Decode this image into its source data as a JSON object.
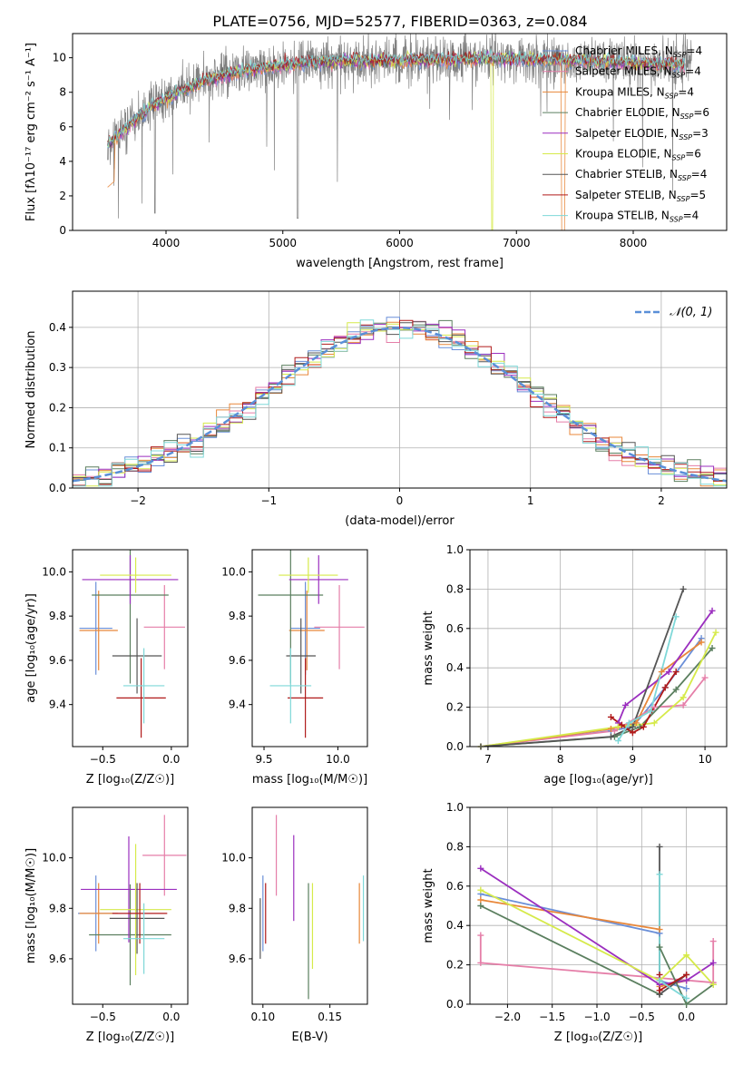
{
  "figure_title": "PLATE=0756, MJD=52577, FIBERID=0363, z=0.084",
  "colors": {
    "Chabrier MILES": "#6a8fd8",
    "Salpeter MILES": "#e57ea8",
    "Kroupa MILES": "#e8873a",
    "Chabrier ELODIE": "#5b7f5f",
    "Salpeter ELODIE": "#9b2fbf",
    "Kroupa ELODIE": "#d6ea4a",
    "Chabrier STELIB": "#555555",
    "Salpeter STELIB": "#b01a1a",
    "Kroupa STELIB": "#7ed8d8",
    "data": "#808080",
    "normal": "#5a8fd8"
  },
  "chart_data": [
    {
      "id": "spectrum",
      "type": "line",
      "xlabel": "wavelength [Angstrom, rest frame]",
      "ylabel": "Flux [fλ10⁻¹⁷ erg cm⁻² s⁻¹ A⁻¹]",
      "xlim": [
        3200,
        8800
      ],
      "ylim": [
        0,
        11.4
      ],
      "xticks": [
        4000,
        5000,
        6000,
        7000,
        8000
      ],
      "yticks": [
        0,
        2,
        4,
        6,
        8,
        10
      ],
      "legend_position": "right",
      "legend": [
        {
          "model": "Chabrier MILES",
          "nssp": 4
        },
        {
          "model": "Salpeter MILES",
          "nssp": 4
        },
        {
          "model": "Kroupa MILES",
          "nssp": 4
        },
        {
          "model": "Chabrier ELODIE",
          "nssp": 6
        },
        {
          "model": "Salpeter ELODIE",
          "nssp": 3
        },
        {
          "model": "Kroupa ELODIE",
          "nssp": 6
        },
        {
          "model": "Chabrier STELIB",
          "nssp": 4
        },
        {
          "model": "Salpeter STELIB",
          "nssp": 5
        },
        {
          "model": "Kroupa STELIB",
          "nssp": 4
        }
      ],
      "model_continuum": {
        "x": [
          3500,
          3700,
          3900,
          4100,
          4300,
          4500,
          4800,
          5200,
          5600,
          6000,
          6400,
          6800,
          7200,
          7600,
          8000,
          8400
        ],
        "y": [
          5.0,
          6.2,
          7.3,
          8.0,
          8.6,
          9.0,
          9.4,
          9.7,
          9.8,
          9.85,
          9.9,
          9.95,
          9.9,
          9.8,
          9.7,
          9.6
        ]
      },
      "data_range": [
        3500,
        8500
      ]
    },
    {
      "id": "residuals",
      "type": "histogram",
      "xlabel": "(data-model)/error",
      "ylabel": "Normed distribution",
      "xlim": [
        -2.5,
        2.5
      ],
      "ylim": [
        0,
        0.49
      ],
      "xticks": [
        -2,
        -1,
        0,
        1,
        2
      ],
      "yticks": [
        0.0,
        0.1,
        0.2,
        0.3,
        0.4
      ],
      "grid": true,
      "legend_position": "top-right",
      "legend": "𝒩(0, 1)",
      "bin_width": 0.1,
      "bin_start": -2.5,
      "approx_shape": "normal, mean 0, sigma 1, clipped at |x| = 2.5"
    },
    {
      "id": "age_vs_Z",
      "type": "scatter",
      "xlabel": "Z [log₁₀(Z/Z☉)]",
      "ylabel": "age  [log₁₀(age/yr)]",
      "xlim": [
        -0.72,
        0.12
      ],
      "ylim": [
        9.21,
        10.1
      ],
      "xticks": [
        -0.5,
        0.0
      ],
      "yticks": [
        9.4,
        9.6,
        9.8,
        10.0
      ],
      "points": [
        {
          "model": "Chabrier MILES",
          "x": -0.55,
          "xerr": 0.12,
          "y": 9.745,
          "yerr": 0.21
        },
        {
          "model": "Salpeter MILES",
          "x": -0.05,
          "xerr": 0.15,
          "y": 9.75,
          "yerr": 0.19
        },
        {
          "model": "Kroupa MILES",
          "x": -0.53,
          "xerr": 0.14,
          "y": 9.735,
          "yerr": 0.18
        },
        {
          "model": "Chabrier ELODIE",
          "x": -0.3,
          "xerr": 0.28,
          "y": 9.895,
          "yerr": 0.4
        },
        {
          "model": "Salpeter ELODIE",
          "x": -0.3,
          "xerr": 0.35,
          "y": 9.965,
          "yerr": 0.11
        },
        {
          "model": "Kroupa ELODIE",
          "x": -0.26,
          "xerr": 0.26,
          "y": 9.985,
          "yerr": 0.08
        },
        {
          "model": "Chabrier STELIB",
          "x": -0.25,
          "xerr": 0.18,
          "y": 9.62,
          "yerr": 0.17
        },
        {
          "model": "Salpeter STELIB",
          "x": -0.22,
          "xerr": 0.18,
          "y": 9.43,
          "yerr": 0.18
        },
        {
          "model": "Kroupa STELIB",
          "x": -0.2,
          "xerr": 0.15,
          "y": 9.485,
          "yerr": 0.17
        }
      ]
    },
    {
      "id": "age_vs_mass",
      "type": "scatter",
      "xlabel": "mass [log₁₀(M/M☉)]",
      "ylabel": "",
      "xlim": [
        9.42,
        10.2
      ],
      "ylim": [
        9.21,
        10.1
      ],
      "xticks": [
        9.5,
        10.0
      ],
      "yticks": [
        9.4,
        9.6,
        9.8,
        10.0
      ],
      "points": [
        {
          "model": "Chabrier MILES",
          "x": 9.78,
          "xerr": 0.1,
          "y": 9.745,
          "yerr": 0.21
        },
        {
          "model": "Salpeter MILES",
          "x": 10.01,
          "xerr": 0.17,
          "y": 9.75,
          "yerr": 0.19
        },
        {
          "model": "Kroupa MILES",
          "x": 9.79,
          "xerr": 0.12,
          "y": 9.735,
          "yerr": 0.18
        },
        {
          "model": "Chabrier ELODIE",
          "x": 9.68,
          "xerr": 0.22,
          "y": 9.895,
          "yerr": 0.4
        },
        {
          "model": "Salpeter ELODIE",
          "x": 9.87,
          "xerr": 0.2,
          "y": 9.965,
          "yerr": 0.11
        },
        {
          "model": "Kroupa ELODIE",
          "x": 9.8,
          "xerr": 0.2,
          "y": 9.985,
          "yerr": 0.08
        },
        {
          "model": "Chabrier STELIB",
          "x": 9.75,
          "xerr": 0.1,
          "y": 9.62,
          "yerr": 0.17
        },
        {
          "model": "Salpeter STELIB",
          "x": 9.78,
          "xerr": 0.12,
          "y": 9.43,
          "yerr": 0.18
        },
        {
          "model": "Kroupa STELIB",
          "x": 9.68,
          "xerr": 0.14,
          "y": 9.485,
          "yerr": 0.17
        }
      ]
    },
    {
      "id": "mw_vs_age",
      "type": "line",
      "xlabel": "age  [log₁₀(age/yr)]",
      "ylabel": "mass weight",
      "xlim": [
        6.75,
        10.3
      ],
      "ylim": [
        0,
        1.0
      ],
      "xticks": [
        7,
        8,
        9,
        10
      ],
      "yticks": [
        0.0,
        0.2,
        0.4,
        0.6,
        0.8,
        1.0
      ],
      "grid": true,
      "series": [
        {
          "model": "Chabrier MILES",
          "x": [
            6.9,
            8.7,
            9.0,
            9.45,
            9.95
          ],
          "y": [
            0.0,
            0.08,
            0.1,
            0.3,
            0.55
          ]
        },
        {
          "model": "Salpeter MILES",
          "x": [
            6.9,
            8.75,
            9.3,
            9.7,
            10.0
          ],
          "y": [
            0.0,
            0.08,
            0.2,
            0.21,
            0.35
          ]
        },
        {
          "model": "Kroupa MILES",
          "x": [
            6.9,
            8.7,
            9.05,
            9.4,
            9.95
          ],
          "y": [
            0.0,
            0.09,
            0.12,
            0.38,
            0.53
          ]
        },
        {
          "model": "Chabrier ELODIE",
          "x": [
            6.9,
            8.75,
            9.1,
            9.6,
            10.1
          ],
          "y": [
            0.0,
            0.05,
            0.1,
            0.29,
            0.5
          ]
        },
        {
          "model": "Salpeter ELODIE",
          "x": [
            8.8,
            8.9,
            9.5,
            10.1
          ],
          "y": [
            0.12,
            0.21,
            0.38,
            0.69
          ]
        },
        {
          "model": "Kroupa ELODIE",
          "x": [
            6.9,
            8.8,
            9.3,
            9.7,
            10.15
          ],
          "y": [
            0.0,
            0.1,
            0.12,
            0.25,
            0.58
          ]
        },
        {
          "model": "Chabrier STELIB",
          "x": [
            6.9,
            8.7,
            9.0,
            9.7
          ],
          "y": [
            0.0,
            0.05,
            0.1,
            0.8
          ]
        },
        {
          "model": "Salpeter STELIB",
          "x": [
            8.7,
            8.85,
            9.0,
            9.15,
            9.45,
            9.6
          ],
          "y": [
            0.15,
            0.11,
            0.07,
            0.1,
            0.3,
            0.38
          ]
        },
        {
          "model": "Kroupa STELIB",
          "x": [
            8.8,
            8.95,
            9.25,
            9.6
          ],
          "y": [
            0.03,
            0.12,
            0.18,
            0.66
          ]
        }
      ]
    },
    {
      "id": "mass_vs_Z",
      "type": "scatter",
      "xlabel": "Z [log₁₀(Z/Z☉)]",
      "ylabel": "mass [log₁₀(M/M☉)]",
      "xlim": [
        -0.72,
        0.12
      ],
      "ylim": [
        9.42,
        10.2
      ],
      "xticks": [
        -0.5,
        0.0
      ],
      "yticks": [
        9.6,
        9.8,
        10.0
      ],
      "points": [
        {
          "model": "Chabrier MILES",
          "x": -0.55,
          "xerr": 0.13,
          "y": 9.78,
          "yerr": 0.15
        },
        {
          "model": "Salpeter MILES",
          "x": -0.05,
          "xerr": 0.16,
          "y": 10.01,
          "yerr": 0.16
        },
        {
          "model": "Kroupa MILES",
          "x": -0.53,
          "xerr": 0.14,
          "y": 9.78,
          "yerr": 0.12
        },
        {
          "model": "Chabrier ELODIE",
          "x": -0.3,
          "xerr": 0.3,
          "y": 9.695,
          "yerr": 0.2
        },
        {
          "model": "Salpeter ELODIE",
          "x": -0.31,
          "xerr": 0.35,
          "y": 9.875,
          "yerr": 0.21
        },
        {
          "model": "Kroupa ELODIE",
          "x": -0.26,
          "xerr": 0.26,
          "y": 9.795,
          "yerr": 0.26
        },
        {
          "model": "Chabrier STELIB",
          "x": -0.25,
          "xerr": 0.2,
          "y": 9.76,
          "yerr": 0.14
        },
        {
          "model": "Salpeter STELIB",
          "x": -0.23,
          "xerr": 0.2,
          "y": 9.78,
          "yerr": 0.12
        },
        {
          "model": "Kroupa STELIB",
          "x": -0.2,
          "xerr": 0.15,
          "y": 9.68,
          "yerr": 0.14
        }
      ]
    },
    {
      "id": "mass_vs_ebv",
      "type": "scatter",
      "xlabel": "E(B-V)",
      "ylabel": "",
      "xlim": [
        0.092,
        0.178
      ],
      "ylim": [
        9.42,
        10.2
      ],
      "xticks": [
        0.1,
        0.15
      ],
      "yticks": [
        9.6,
        9.8,
        10.0
      ],
      "points": [
        {
          "model": "Chabrier MILES",
          "x": 0.1,
          "y": 9.78,
          "yerr": 0.15
        },
        {
          "model": "Salpeter MILES",
          "x": 0.11,
          "y": 10.01,
          "yerr": 0.16
        },
        {
          "model": "Kroupa MILES",
          "x": 0.172,
          "y": 9.78,
          "yerr": 0.12
        },
        {
          "model": "Chabrier ELODIE",
          "x": 0.134,
          "y": 9.67,
          "yerr": 0.23
        },
        {
          "model": "Salpeter ELODIE",
          "x": 0.123,
          "y": 9.92,
          "yerr": 0.17
        },
        {
          "model": "Kroupa ELODIE",
          "x": 0.137,
          "y": 9.73,
          "yerr": 0.17
        },
        {
          "model": "Chabrier STELIB",
          "x": 0.098,
          "y": 9.72,
          "yerr": 0.12
        },
        {
          "model": "Salpeter STELIB",
          "x": 0.102,
          "y": 9.78,
          "yerr": 0.12
        },
        {
          "model": "Kroupa STELIB",
          "x": 0.175,
          "y": 9.8,
          "yerr": 0.13
        }
      ]
    },
    {
      "id": "mw_vs_Z",
      "type": "line",
      "xlabel": "Z [log₁₀(Z/Z☉)]",
      "ylabel": "mass weight",
      "xlim": [
        -2.42,
        0.45
      ],
      "ylim": [
        0,
        1.0
      ],
      "xticks": [
        -2.0,
        -1.5,
        -1.0,
        -0.5,
        0.0
      ],
      "yticks": [
        0.0,
        0.2,
        0.4,
        0.6,
        0.8,
        1.0
      ],
      "grid": true,
      "series": [
        {
          "model": "Chabrier MILES",
          "x": [
            -2.3,
            -0.3,
            -0.3,
            0.0
          ],
          "y": [
            0.56,
            0.36,
            0.12,
            0.08
          ]
        },
        {
          "model": "Salpeter MILES",
          "x": [
            -2.3,
            -2.3,
            0.3,
            0.3
          ],
          "y": [
            0.35,
            0.21,
            0.11,
            0.32
          ]
        },
        {
          "model": "Kroupa MILES",
          "x": [
            -2.3,
            -0.3,
            -0.3,
            0.0
          ],
          "y": [
            0.53,
            0.38,
            0.09,
            0.12
          ]
        },
        {
          "model": "Chabrier ELODIE",
          "x": [
            -2.3,
            -0.3,
            -0.3,
            0.0,
            0.3
          ],
          "y": [
            0.5,
            0.05,
            0.29,
            0.0,
            0.1
          ]
        },
        {
          "model": "Salpeter ELODIE",
          "x": [
            -2.3,
            -0.3,
            0.0,
            0.3
          ],
          "y": [
            0.69,
            0.1,
            0.12,
            0.21
          ]
        },
        {
          "model": "Kroupa ELODIE",
          "x": [
            -2.3,
            -0.3,
            0.0,
            0.3
          ],
          "y": [
            0.58,
            0.12,
            0.25,
            0.1
          ]
        },
        {
          "model": "Chabrier STELIB",
          "x": [
            -0.3,
            -0.3,
            0.0
          ],
          "y": [
            0.8,
            0.05,
            0.15
          ]
        },
        {
          "model": "Salpeter STELIB",
          "x": [
            -0.3,
            -0.3,
            0.0
          ],
          "y": [
            0.15,
            0.07,
            0.15
          ]
        },
        {
          "model": "Kroupa STELIB",
          "x": [
            -0.3,
            -0.3,
            0.0
          ],
          "y": [
            0.66,
            0.12,
            0.03
          ]
        }
      ]
    }
  ]
}
